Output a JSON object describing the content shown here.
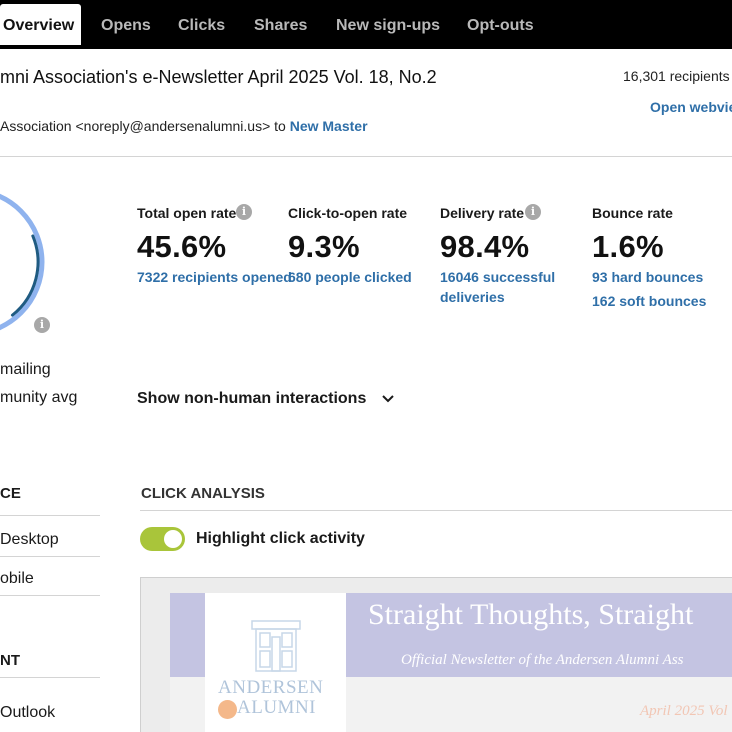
{
  "nav": {
    "tabs": [
      {
        "label": "Overview",
        "active": true
      },
      {
        "label": "Opens"
      },
      {
        "label": "Clicks"
      },
      {
        "label": "Shares"
      },
      {
        "label": "New sign-ups"
      },
      {
        "label": "Opt-outs"
      }
    ]
  },
  "header": {
    "title": "mni Association's e-Newsletter April 2025 Vol. 18, No.2",
    "recipients": "16,301 recipients",
    "webview": "Open webview",
    "sender_prefix": "Association <noreply@andersenalumni.us> to ",
    "sender_list": "New Master"
  },
  "stats": [
    {
      "label": "Total open rate",
      "value": "45.6%",
      "sub": [
        "7322 recipients opened"
      ],
      "info": true
    },
    {
      "label": "Click-to-open rate",
      "value": "9.3%",
      "sub": [
        "680 people clicked"
      ],
      "info": false
    },
    {
      "label": "Delivery rate",
      "value": "98.4%",
      "sub": [
        "16046 successful",
        "deliveries"
      ],
      "info": true
    },
    {
      "label": "Bounce rate",
      "value": "1.6%",
      "sub": [
        "93 hard bounces",
        "162 soft bounces"
      ],
      "info": false
    }
  ],
  "gauge": {
    "fraction": 0.456,
    "ring_color": "#8fb3ee",
    "arc_color": "#1f5b82"
  },
  "left_legend": {
    "line1": "mailing",
    "line2": "munity avg"
  },
  "non_human_toggle": "Show non-human interactions",
  "device": {
    "heading": "CE",
    "items": [
      "Desktop",
      "obile"
    ]
  },
  "client": {
    "heading": "NT",
    "items": [
      "Outlook"
    ]
  },
  "click_analysis": {
    "heading": "CLICK ANALYSIS",
    "toggle_label": "Highlight click activity",
    "toggle_on": true,
    "toggle_color": "#a9c53a"
  },
  "newsletter": {
    "title": "Straight Thoughts, Straight",
    "subtitle": "Official Newsletter of the Andersen Alumni Ass",
    "date": "April 2025 Vol",
    "logo_line1": "ANDERSEN",
    "logo_line2": "ALUMNI"
  },
  "icons": {
    "info": "info-icon",
    "chevron": "chevron-down-icon",
    "logo": "building-logo-icon"
  }
}
